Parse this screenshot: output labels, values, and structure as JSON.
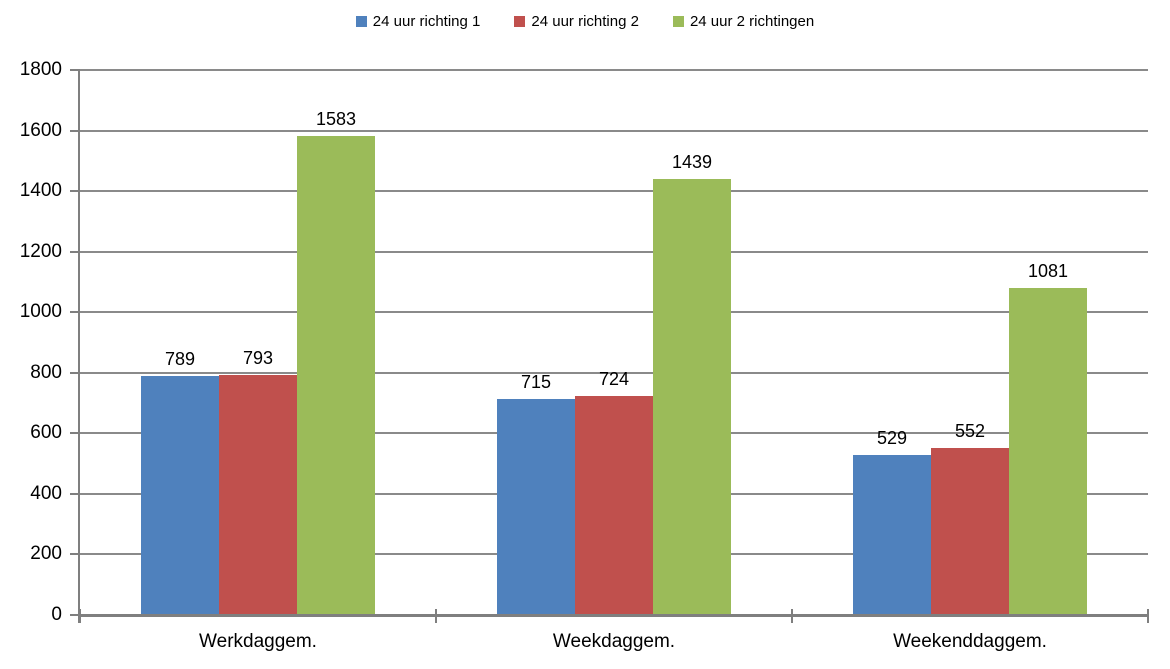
{
  "chart_data": {
    "type": "bar",
    "title": "",
    "xlabel": "",
    "ylabel": "",
    "categories": [
      "Werkdaggem.",
      "Weekdaggem.",
      "Weekenddaggem."
    ],
    "series": [
      {
        "name": "24 uur richting 1",
        "color": "#4F81BD",
        "values": [
          789,
          715,
          529
        ]
      },
      {
        "name": "24 uur richting 2",
        "color": "#C0504D",
        "values": [
          793,
          724,
          552
        ]
      },
      {
        "name": "24 uur 2 richtingen",
        "color": "#9BBB59",
        "values": [
          1583,
          1439,
          1081
        ]
      }
    ],
    "ylim": [
      0,
      1800
    ],
    "ytick_step": 200,
    "grid": true,
    "legend_position": "top",
    "data_labels": true,
    "colors": {
      "gridline": "#8A8A8A",
      "axis": "#7F7F7F",
      "text": "#000000",
      "background": "#FFFFFF"
    }
  }
}
